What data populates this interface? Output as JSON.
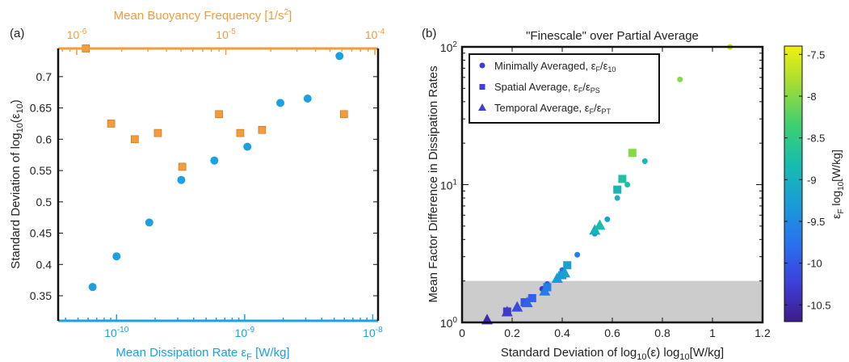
{
  "chart_data": [
    {
      "panel_label": "(a)",
      "type": "scatter",
      "xlabel": "Mean Dissipation Rate ε_F [W/kg]",
      "xlabel_top": "Mean Buoyancy Frequency [1/s²]",
      "ylabel": "Standard Deviation of log10(ε10)",
      "x_scale": "log",
      "x_top_scale": "log",
      "xlim": [
        3.5e-11,
        1.1e-08
      ],
      "x_top_lim": [
        7.5e-07,
        0.000105
      ],
      "ylim": [
        0.31,
        0.745
      ],
      "x_ticks": [
        "10^-10",
        "10^-9",
        "10^-8"
      ],
      "x_top_ticks": [
        "10^-6",
        "10^-5",
        "10^-4"
      ],
      "y_ticks": [
        0.35,
        0.4,
        0.45,
        0.5,
        0.55,
        0.6,
        0.65,
        0.7
      ],
      "colors": {
        "dissipation": "#1ba0e2",
        "buoyancy": "#f39c3c"
      },
      "series": [
        {
          "axis": "bottom",
          "marker": "circle",
          "x": [
            6.5e-11,
            1e-10,
            1.8e-10,
            3.2e-10,
            5.8e-10,
            1.05e-09,
            1.9e-09,
            3.1e-09,
            5.5e-09
          ],
          "y": [
            0.364,
            0.413,
            0.467,
            0.535,
            0.566,
            0.588,
            0.658,
            0.665,
            0.733
          ]
        },
        {
          "axis": "top",
          "marker": "square",
          "x": [
            1.15e-06,
            1.7e-06,
            2.45e-06,
            3.5e-06,
            5.1e-06,
            9e-06,
            1.25e-05,
            1.75e-05,
            6.2e-05
          ],
          "y": [
            0.745,
            0.625,
            0.6,
            0.61,
            0.556,
            0.64,
            0.61,
            0.615,
            0.64
          ]
        }
      ]
    },
    {
      "panel_label": "(b)",
      "type": "scatter",
      "title": "\"Finescale\" over Partial Average",
      "xlabel": "Standard Deviation of log10(ε) log10[W/kg]",
      "ylabel": "Mean Factor Difference in Dissipation Rates",
      "y_scale": "log",
      "xlim": [
        0,
        1.2
      ],
      "ylim": [
        1,
        100
      ],
      "x_ticks": [
        0,
        0.2,
        0.4,
        0.6,
        0.8,
        1,
        1.2
      ],
      "y_ticks": [
        "10^0",
        "10^1",
        "10^2"
      ],
      "shaded_region": {
        "x": [
          0,
          1.2
        ],
        "y": [
          1,
          2
        ],
        "color": "#cccccc"
      },
      "legend": {
        "placement": "top-left",
        "entries": [
          {
            "label": "Minimally Averaged, ε_F/ε_10",
            "marker": "circle"
          },
          {
            "label": "Spatial Average, ε_F/ε_PS",
            "marker": "square"
          },
          {
            "label": "Temporal Average, ε_F/ε_PT",
            "marker": "triangle"
          }
        ]
      },
      "colorbar": {
        "label": "ε_F log10[W/kg]",
        "range": [
          -10.7,
          -7.4
        ],
        "ticks": [
          "-7.5",
          "-8",
          "-8.5",
          "-9",
          "-9.5",
          "-10",
          "-10.5"
        ],
        "colormap": [
          "#3d1c88",
          "#3e3fd8",
          "#2a70ee",
          "#1a9bd8",
          "#17bcae",
          "#3ccf73",
          "#a0dd35",
          "#f2f00f"
        ]
      },
      "series": [
        {
          "name": "Minimally Averaged",
          "marker": "circle",
          "points": [
            {
              "x": 0.32,
              "y": 1.75,
              "c": -10.3
            },
            {
              "x": 0.34,
              "y": 1.9,
              "c": -10.1
            },
            {
              "x": 0.4,
              "y": 2.4,
              "c": -9.8
            },
            {
              "x": 0.46,
              "y": 3.1,
              "c": -9.6
            },
            {
              "x": 0.53,
              "y": 4.4,
              "c": -9.4
            },
            {
              "x": 0.55,
              "y": 5.0,
              "c": -9.3
            },
            {
              "x": 0.58,
              "y": 5.6,
              "c": -9.2
            },
            {
              "x": 0.62,
              "y": 8.0,
              "c": -9.0
            },
            {
              "x": 0.66,
              "y": 10.0,
              "c": -8.8
            },
            {
              "x": 0.73,
              "y": 14.8,
              "c": -8.9
            },
            {
              "x": 0.87,
              "y": 58,
              "c": -8.0
            },
            {
              "x": 1.07,
              "y": 100,
              "c": -7.7
            }
          ]
        },
        {
          "name": "Spatial Average",
          "marker": "square",
          "points": [
            {
              "x": 0.18,
              "y": 1.2,
              "c": -10.3
            },
            {
              "x": 0.25,
              "y": 1.4,
              "c": -10.0
            },
            {
              "x": 0.28,
              "y": 1.5,
              "c": -9.9
            },
            {
              "x": 0.34,
              "y": 1.8,
              "c": -9.6
            },
            {
              "x": 0.4,
              "y": 2.2,
              "c": -9.3
            },
            {
              "x": 0.42,
              "y": 2.6,
              "c": -9.2
            },
            {
              "x": 0.62,
              "y": 9.2,
              "c": -8.9
            },
            {
              "x": 0.64,
              "y": 11.0,
              "c": -8.7
            },
            {
              "x": 0.68,
              "y": 17.0,
              "c": -8.0
            }
          ]
        },
        {
          "name": "Temporal Average",
          "marker": "triangle",
          "points": [
            {
              "x": 0.1,
              "y": 1.05,
              "c": -10.5
            },
            {
              "x": 0.18,
              "y": 1.2,
              "c": -10.3
            },
            {
              "x": 0.22,
              "y": 1.3,
              "c": -10.1
            },
            {
              "x": 0.26,
              "y": 1.4,
              "c": -9.9
            },
            {
              "x": 0.33,
              "y": 1.7,
              "c": -9.6
            },
            {
              "x": 0.38,
              "y": 2.1,
              "c": -9.3
            },
            {
              "x": 0.41,
              "y": 2.3,
              "c": -9.2
            },
            {
              "x": 0.53,
              "y": 4.7,
              "c": -9.0
            },
            {
              "x": 0.55,
              "y": 5.1,
              "c": -8.8
            }
          ]
        }
      ]
    }
  ]
}
